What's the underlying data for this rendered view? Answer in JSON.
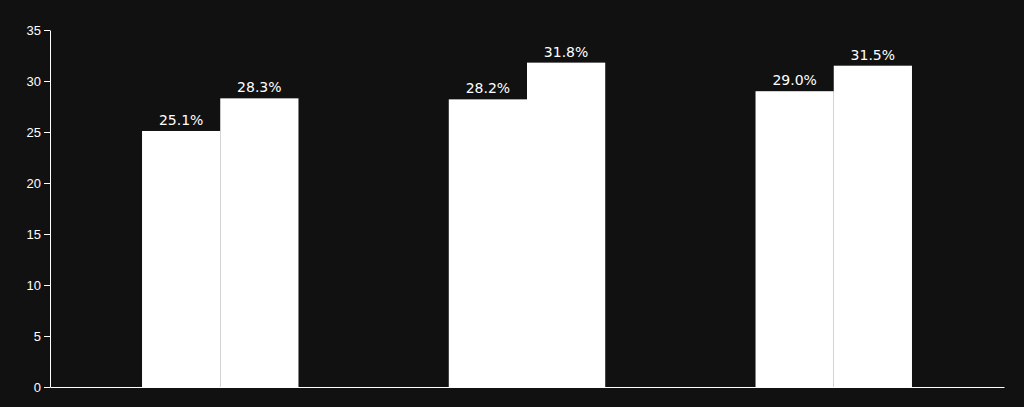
{
  "chart_data": {
    "type": "bar",
    "categories": [
      null,
      null,
      null
    ],
    "series": [
      {
        "color": "#ffffff",
        "values": [
          25.1,
          28.2,
          29.0
        ],
        "value_labels": [
          "25.1%",
          "28.2%",
          "29.0%"
        ]
      },
      {
        "color": "#ffffff",
        "values": [
          28.3,
          31.8,
          31.5
        ],
        "value_labels": [
          "28.3%",
          "31.8%",
          "31.5%"
        ]
      }
    ],
    "ylim": [
      0,
      35
    ],
    "yticks": [
      0,
      5,
      10,
      15,
      20,
      25,
      30,
      35
    ],
    "grid": false,
    "data_labels": true,
    "tick_labels": "y"
  }
}
